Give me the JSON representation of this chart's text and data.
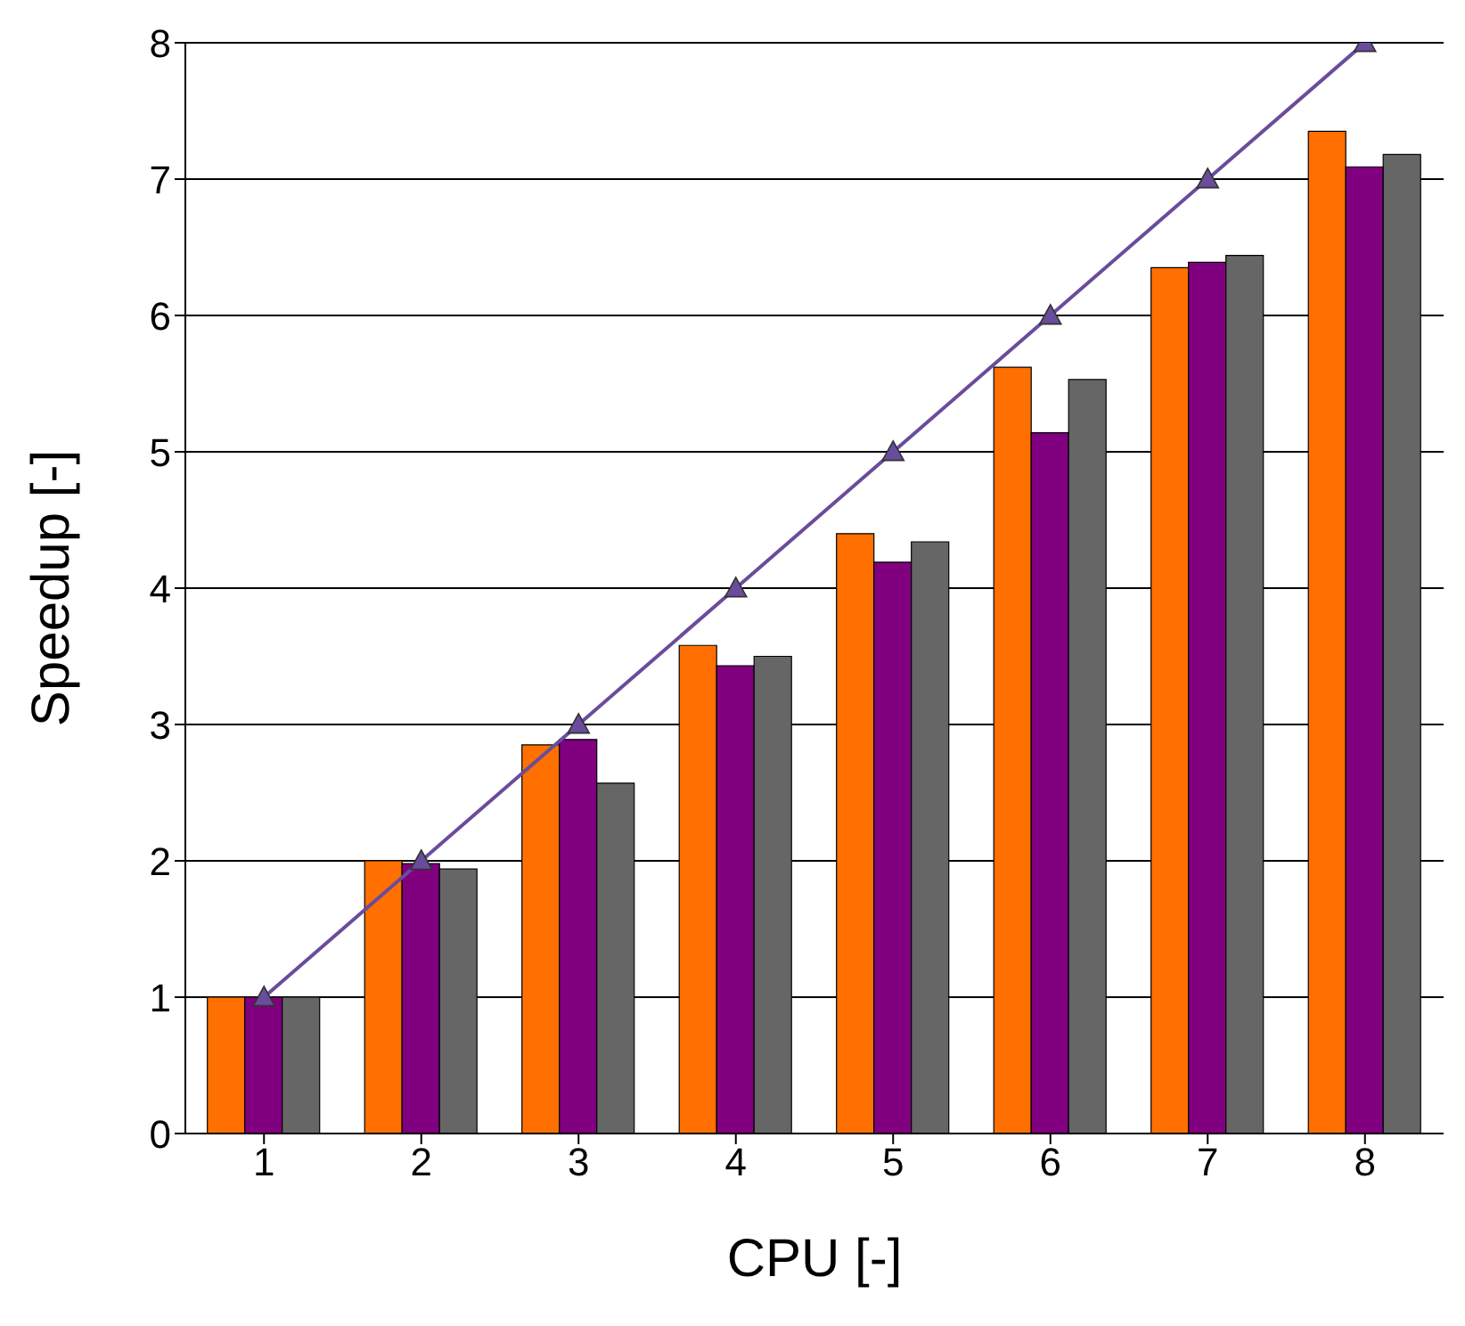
{
  "chart_data": {
    "type": "bar",
    "xlabel": "CPU [-]",
    "ylabel": "Speedup [-]",
    "categories": [
      "1",
      "2",
      "3",
      "4",
      "5",
      "6",
      "7",
      "8"
    ],
    "series": [
      {
        "color": "#ff7000",
        "values": [
          1.0,
          2.0,
          2.85,
          3.58,
          4.4,
          5.62,
          6.35,
          7.35
        ]
      },
      {
        "color": "#800080",
        "values": [
          1.0,
          1.98,
          2.89,
          3.43,
          4.19,
          5.14,
          6.39,
          7.09
        ]
      },
      {
        "color": "#666666",
        "values": [
          1.0,
          1.94,
          2.57,
          3.5,
          4.34,
          5.53,
          6.44,
          7.18
        ]
      },
      {
        "type": "line",
        "color": "#6a4c9c",
        "marker": "triangle",
        "values": [
          1,
          2,
          3,
          4,
          5,
          6,
          7,
          8
        ]
      }
    ],
    "ylim": [
      0,
      8
    ],
    "yticks": [
      0,
      1,
      2,
      3,
      4,
      5,
      6,
      7,
      8
    ],
    "grid": "y",
    "legend": false
  }
}
